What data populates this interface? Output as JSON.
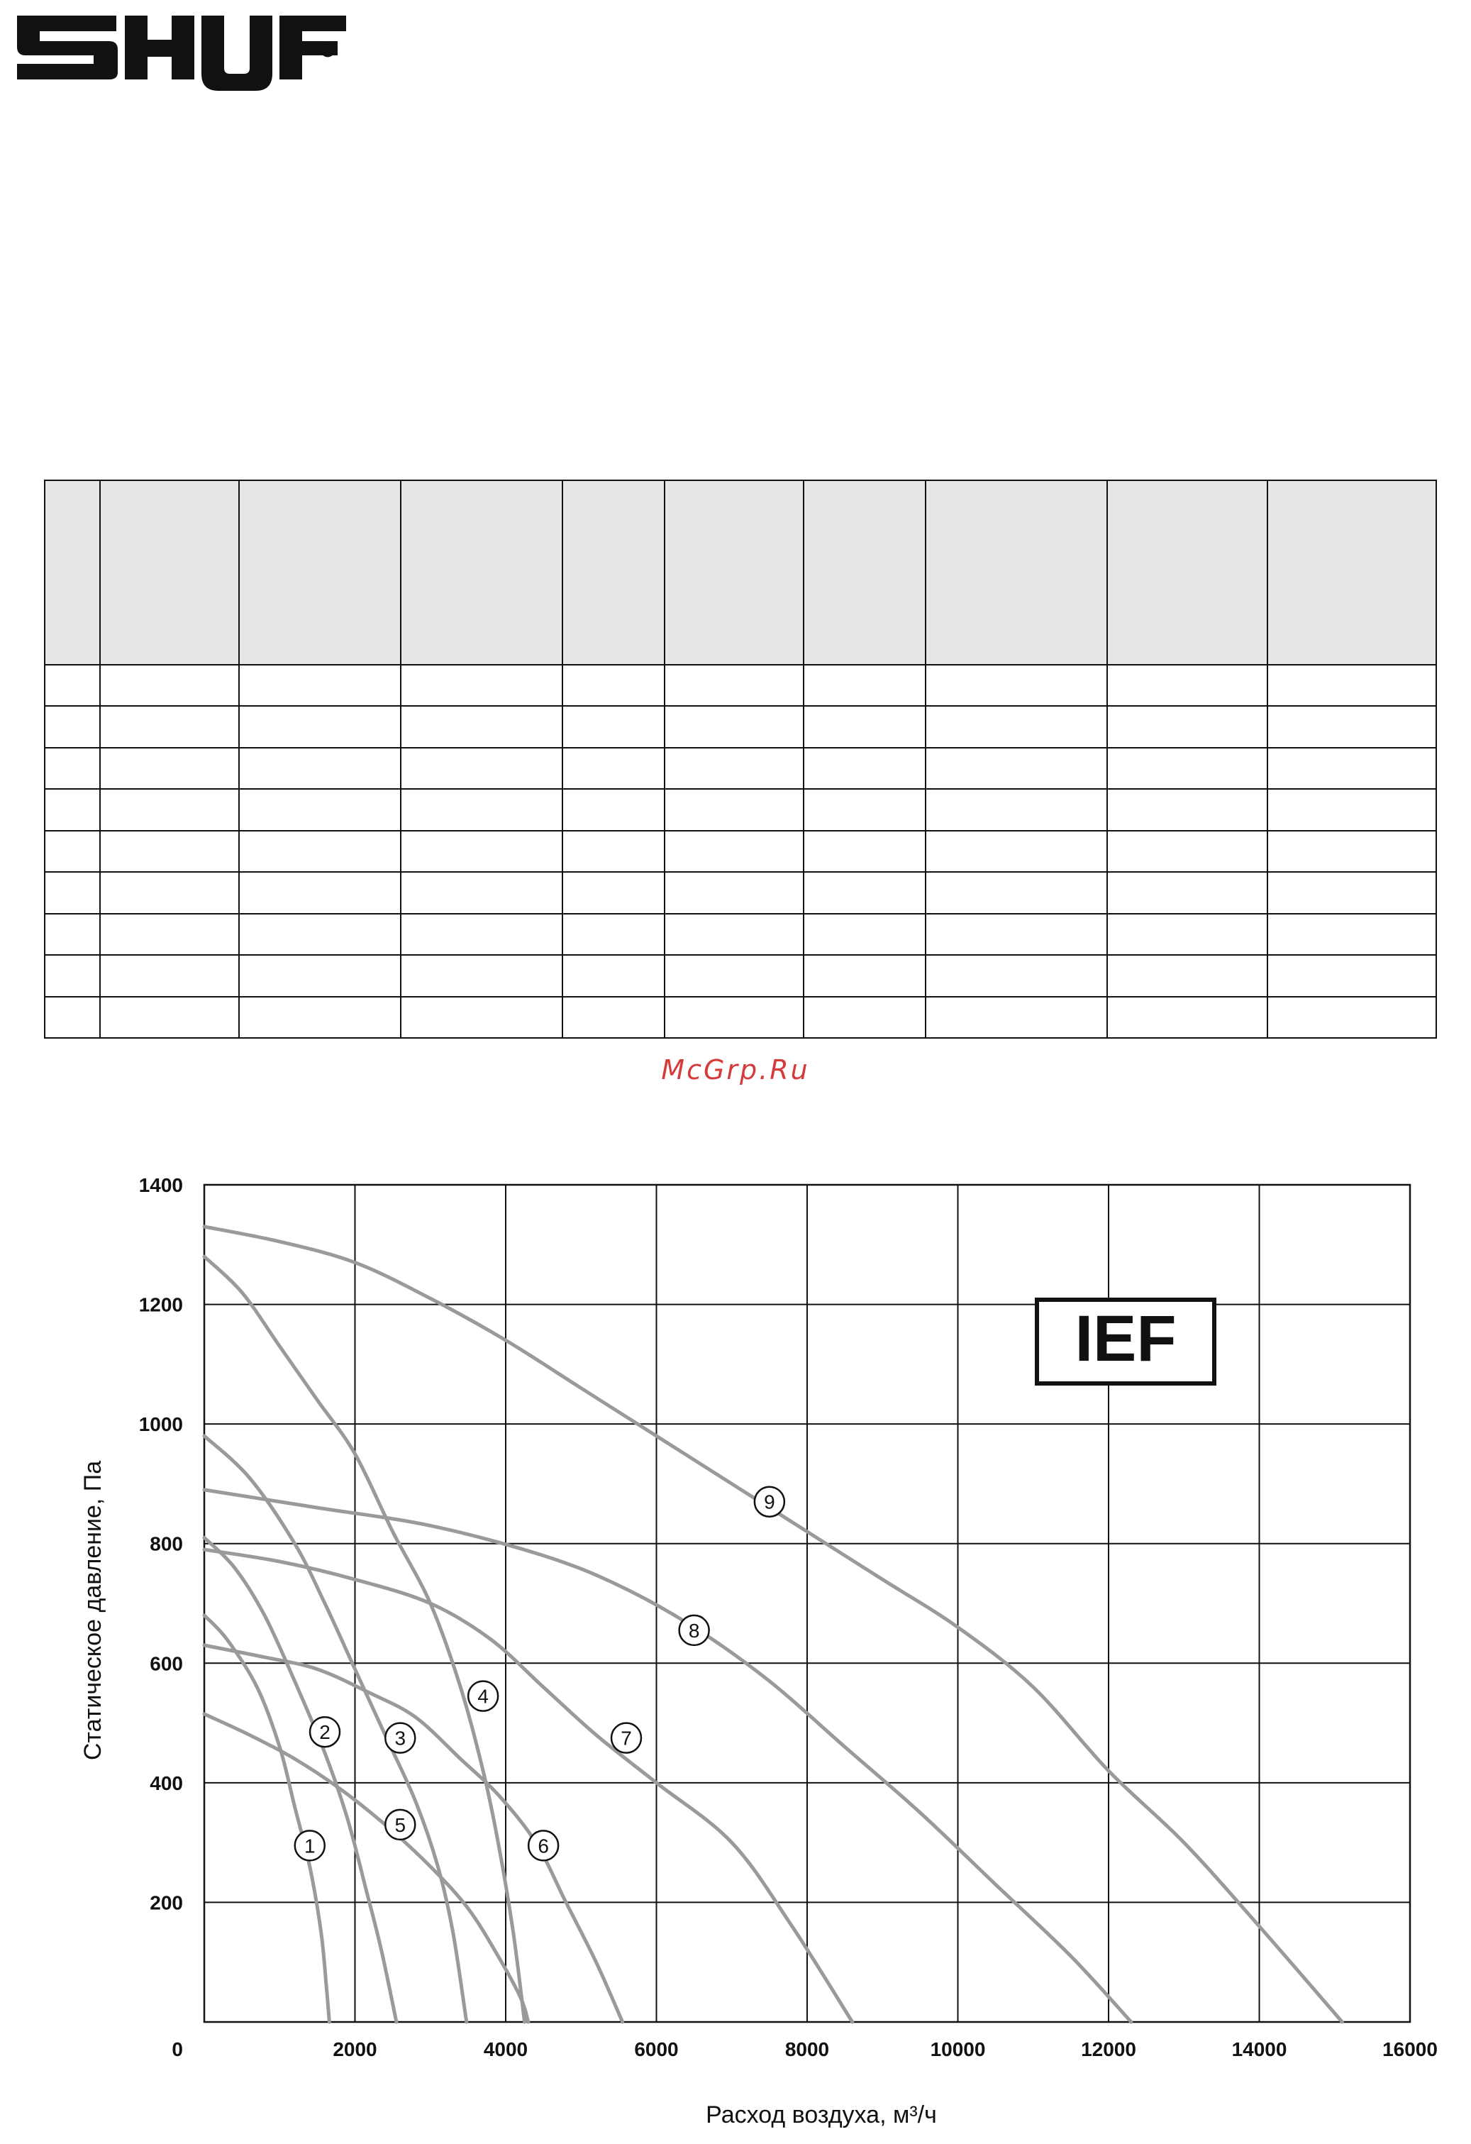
{
  "brand": {
    "name": "SHUFT"
  },
  "table": {
    "columns": 10,
    "rows": 9
  },
  "watermark": {
    "text": "McGrp.Ru"
  },
  "chart_data": {
    "type": "line",
    "title": "",
    "badge": "IEF",
    "xlabel": "Расход воздуха, м³/ч",
    "ylabel": "Статическое давление, Па",
    "xlim": [
      0,
      16000
    ],
    "ylim": [
      0,
      1400
    ],
    "xticks": [
      2000,
      4000,
      6000,
      8000,
      10000,
      12000,
      14000,
      16000
    ],
    "yticks": [
      200,
      400,
      600,
      800,
      1000,
      1200,
      1400
    ],
    "origin_label": "0",
    "grid": true,
    "curve_color": "#9a9a9a",
    "series": [
      {
        "name": "1",
        "label_at": [
          1400,
          295
        ],
        "points": [
          [
            0,
            680
          ],
          [
            300,
            640
          ],
          [
            700,
            560
          ],
          [
            1000,
            460
          ],
          [
            1200,
            360
          ],
          [
            1400,
            260
          ],
          [
            1550,
            150
          ],
          [
            1620,
            60
          ],
          [
            1660,
            0
          ]
        ]
      },
      {
        "name": "2",
        "label_at": [
          1600,
          485
        ],
        "points": [
          [
            0,
            810
          ],
          [
            400,
            760
          ],
          [
            800,
            680
          ],
          [
            1200,
            570
          ],
          [
            1600,
            450
          ],
          [
            1900,
            340
          ],
          [
            2150,
            220
          ],
          [
            2350,
            120
          ],
          [
            2550,
            0
          ]
        ]
      },
      {
        "name": "3",
        "label_at": [
          2600,
          475
        ],
        "points": [
          [
            0,
            980
          ],
          [
            600,
            910
          ],
          [
            1200,
            800
          ],
          [
            1600,
            700
          ],
          [
            2000,
            590
          ],
          [
            2400,
            480
          ],
          [
            2800,
            370
          ],
          [
            3100,
            260
          ],
          [
            3300,
            150
          ],
          [
            3480,
            0
          ]
        ]
      },
      {
        "name": "4",
        "label_at": [
          3700,
          545
        ],
        "points": [
          [
            0,
            1280
          ],
          [
            500,
            1220
          ],
          [
            1000,
            1130
          ],
          [
            1500,
            1040
          ],
          [
            2000,
            950
          ],
          [
            2500,
            820
          ],
          [
            3000,
            700
          ],
          [
            3400,
            560
          ],
          [
            3700,
            420
          ],
          [
            3900,
            300
          ],
          [
            4100,
            150
          ],
          [
            4250,
            0
          ]
        ]
      },
      {
        "name": "5",
        "label_at": [
          2600,
          330
        ],
        "points": [
          [
            0,
            515
          ],
          [
            600,
            480
          ],
          [
            1200,
            440
          ],
          [
            1800,
            390
          ],
          [
            2400,
            330
          ],
          [
            3000,
            260
          ],
          [
            3500,
            190
          ],
          [
            3900,
            110
          ],
          [
            4200,
            40
          ],
          [
            4300,
            0
          ]
        ]
      },
      {
        "name": "6",
        "label_at": [
          4500,
          295
        ],
        "points": [
          [
            0,
            630
          ],
          [
            800,
            610
          ],
          [
            1500,
            590
          ],
          [
            2200,
            550
          ],
          [
            2800,
            510
          ],
          [
            3400,
            440
          ],
          [
            3900,
            380
          ],
          [
            4400,
            300
          ],
          [
            4800,
            200
          ],
          [
            5200,
            100
          ],
          [
            5550,
            0
          ]
        ]
      },
      {
        "name": "7",
        "label_at": [
          5600,
          475
        ],
        "points": [
          [
            0,
            790
          ],
          [
            1000,
            770
          ],
          [
            2000,
            740
          ],
          [
            3000,
            700
          ],
          [
            3800,
            640
          ],
          [
            4500,
            560
          ],
          [
            5200,
            480
          ],
          [
            6000,
            400
          ],
          [
            7000,
            300
          ],
          [
            7800,
            160
          ],
          [
            8600,
            0
          ]
        ]
      },
      {
        "name": "8",
        "label_at": [
          6500,
          655
        ],
        "points": [
          [
            0,
            890
          ],
          [
            1500,
            860
          ],
          [
            3000,
            830
          ],
          [
            4500,
            780
          ],
          [
            5500,
            730
          ],
          [
            6500,
            660
          ],
          [
            7500,
            570
          ],
          [
            8500,
            460
          ],
          [
            9500,
            350
          ],
          [
            10500,
            230
          ],
          [
            11500,
            110
          ],
          [
            12300,
            0
          ]
        ]
      },
      {
        "name": "9",
        "label_at": [
          7500,
          870
        ],
        "points": [
          [
            0,
            1330
          ],
          [
            1000,
            1305
          ],
          [
            2000,
            1270
          ],
          [
            3000,
            1210
          ],
          [
            4000,
            1140
          ],
          [
            5000,
            1060
          ],
          [
            6000,
            980
          ],
          [
            7000,
            900
          ],
          [
            8000,
            820
          ],
          [
            9000,
            740
          ],
          [
            10000,
            660
          ],
          [
            11000,
            560
          ],
          [
            12000,
            420
          ],
          [
            13000,
            300
          ],
          [
            14000,
            160
          ],
          [
            15100,
            0
          ]
        ]
      }
    ]
  }
}
